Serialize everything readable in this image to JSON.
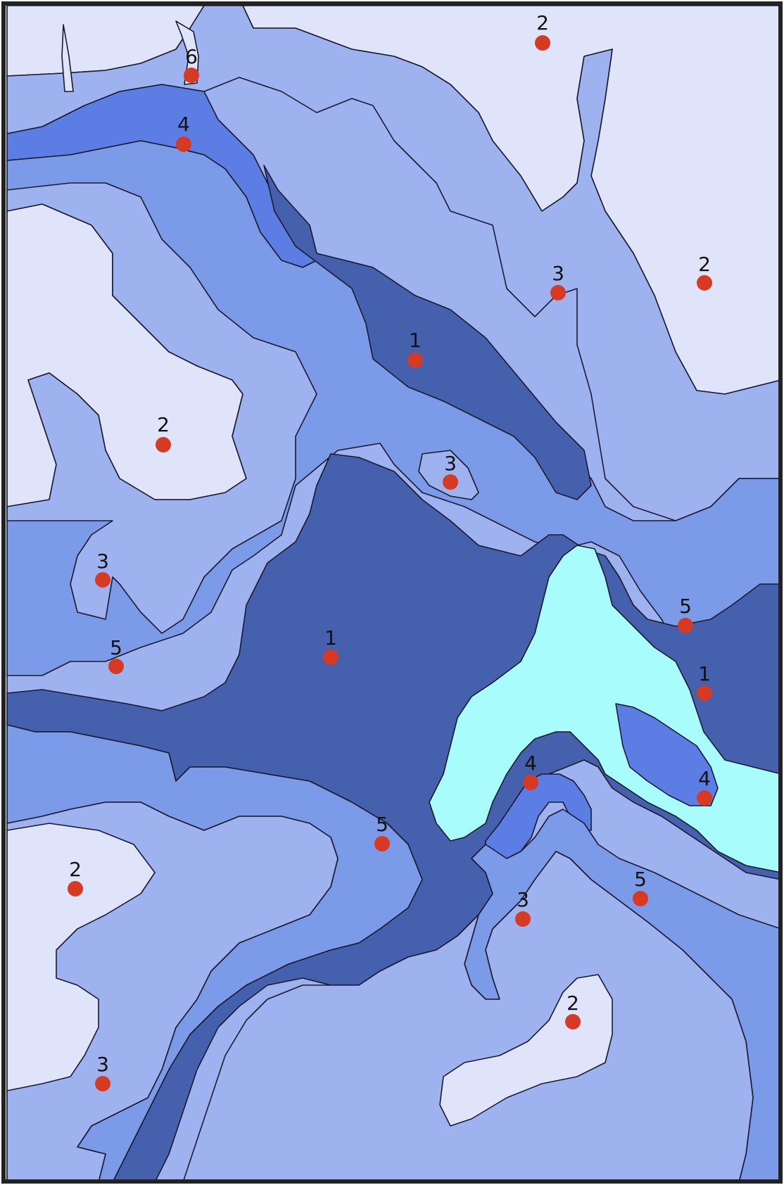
{
  "map": {
    "zone_colors": {
      "1": "#4560ad",
      "2": "#dfe4fa",
      "3": "#9eb2f0",
      "4": "#5c7ee4",
      "5": "#7b9ae8",
      "6": "#a8fcfc"
    },
    "marker_color": "#d63a22",
    "border_color": "#222222",
    "markers": [
      {
        "label": "2"
      },
      {
        "label": "6"
      },
      {
        "label": "4"
      },
      {
        "label": "3"
      },
      {
        "label": "2"
      },
      {
        "label": "1"
      },
      {
        "label": "2"
      },
      {
        "label": "3"
      },
      {
        "label": "3"
      },
      {
        "label": "5"
      },
      {
        "label": "1"
      },
      {
        "label": "5"
      },
      {
        "label": "1"
      },
      {
        "label": "4"
      },
      {
        "label": "4"
      },
      {
        "label": "5"
      },
      {
        "label": "2"
      },
      {
        "label": "3"
      },
      {
        "label": "5"
      },
      {
        "label": "2"
      },
      {
        "label": "3"
      }
    ]
  }
}
